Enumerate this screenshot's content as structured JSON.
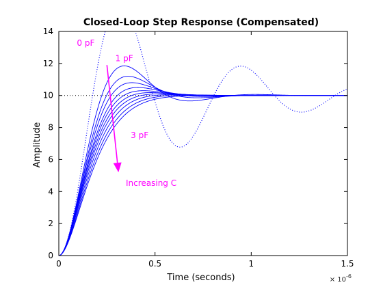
{
  "chart_data": {
    "type": "line",
    "title": "Closed-Loop Step Response (Compensated)",
    "xlabel": "Time (seconds)",
    "ylabel": "Amplitude",
    "xlim": [
      0,
      1.5e-06
    ],
    "ylim": [
      0,
      14
    ],
    "x_ticks": [
      0,
      5e-07,
      1e-06,
      1.5e-06
    ],
    "x_tick_labels": [
      "0",
      "0.5",
      "1",
      "1.5"
    ],
    "x_exponent_label": "× 10^-6",
    "y_ticks": [
      0,
      2,
      4,
      6,
      8,
      10,
      12,
      14
    ],
    "y_tick_labels": [
      "0",
      "2",
      "4",
      "6",
      "8",
      "10",
      "12",
      "14"
    ],
    "grid": false,
    "reference_line": {
      "y": 10,
      "style": "dotted",
      "color": "#000000"
    },
    "undamped_curve": {
      "label": "0 pF",
      "color": "#0000ff",
      "style": "dotted",
      "final_value": 10,
      "period": 6.3e-07,
      "decay": 0.18,
      "x_end": 1.5e-06
    },
    "series_family": {
      "color": "#0000ff",
      "style": "solid",
      "final_value": 10,
      "x_end": 1.5e-06,
      "members": [
        {
          "overshoot_peak": 11.85,
          "t_peak": 3.4e-07
        },
        {
          "overshoot_peak": 11.2,
          "t_peak": 3.6e-07
        },
        {
          "overshoot_peak": 10.8,
          "t_peak": 3.8e-07
        },
        {
          "overshoot_peak": 10.5,
          "t_peak": 4.1e-07
        },
        {
          "overshoot_peak": 10.3,
          "t_peak": 4.4e-07
        },
        {
          "overshoot_peak": 10.18,
          "t_peak": 4.8e-07
        },
        {
          "overshoot_peak": 10.1,
          "t_peak": 5.3e-07
        },
        {
          "overshoot_peak": 10.05,
          "t_peak": 6e-07
        },
        {
          "overshoot_peak": 10.02,
          "t_peak": 7e-07
        },
        {
          "overshoot_peak": 10.0,
          "t_peak": 8.5e-07
        }
      ]
    },
    "annotations": [
      {
        "text": "0 pF",
        "x": 1.4e-07,
        "y": 13.1,
        "color": "#ff00ff"
      },
      {
        "text": "1 pF",
        "x": 3.4e-07,
        "y": 12.15,
        "color": "#ff00ff"
      },
      {
        "text": "3 pF",
        "x": 4.2e-07,
        "y": 7.35,
        "color": "#ff00ff"
      },
      {
        "text": "Increasing C",
        "x": 4.8e-07,
        "y": 4.35,
        "color": "#ff00ff"
      }
    ],
    "arrow": {
      "from": [
        2.5e-07,
        11.9
      ],
      "to": [
        3.1e-07,
        5.2
      ],
      "color": "#ff00ff"
    }
  }
}
